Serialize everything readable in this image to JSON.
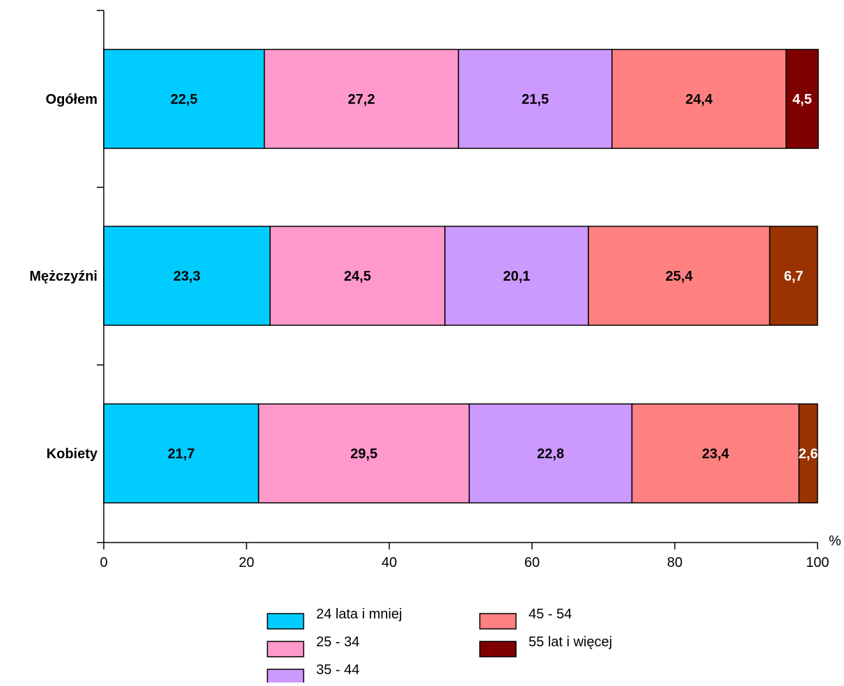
{
  "chart_data": {
    "type": "bar",
    "orientation": "horizontal",
    "stacked": true,
    "title": "",
    "xlabel": "",
    "ylabel": "",
    "unit_label": "%",
    "xlim": [
      0,
      100
    ],
    "x_ticks": [
      0,
      20,
      40,
      60,
      80,
      100
    ],
    "grid": false,
    "legend_position": "bottom",
    "categories": [
      "Ogółem",
      "Mężczyźni",
      "Kobiety"
    ],
    "series": [
      {
        "name": "24 lata i mniej",
        "values": [
          22.5,
          23.3,
          21.7
        ],
        "labels": [
          "22,5",
          "23,3",
          "21,7"
        ],
        "color": "#00ccff",
        "colors": [
          "#00ccff",
          "#00ccff",
          "#00ccff"
        ],
        "label_color": "#000000"
      },
      {
        "name": "25 - 34",
        "values": [
          27.2,
          24.5,
          29.5
        ],
        "labels": [
          "27,2",
          "24,5",
          "29,5"
        ],
        "color": "#ff99cc",
        "colors": [
          "#ff99cc",
          "#ff99cc",
          "#ff99cc"
        ],
        "label_color": "#000000"
      },
      {
        "name": "35 - 44",
        "values": [
          21.5,
          20.1,
          22.8
        ],
        "labels": [
          "21,5",
          "20,1",
          "22,8"
        ],
        "color": "#cc99ff",
        "colors": [
          "#cc99ff",
          "#cc99ff",
          "#cc99ff"
        ],
        "label_color": "#000000"
      },
      {
        "name": "45 - 54",
        "values": [
          24.4,
          25.4,
          23.4
        ],
        "labels": [
          "24,4",
          "25,4",
          "23,4"
        ],
        "color": "#ff8080",
        "colors": [
          "#ff8080",
          "#ff8080",
          "#ff8080"
        ],
        "label_color": "#000000"
      },
      {
        "name": "55 lat i więcej",
        "values": [
          4.5,
          6.7,
          2.6
        ],
        "labels": [
          "4,5",
          "6,7",
          "2,6"
        ],
        "color": "#800000",
        "colors": [
          "#800000",
          "#993300",
          "#993300"
        ],
        "label_color": "#ffffff"
      }
    ]
  }
}
